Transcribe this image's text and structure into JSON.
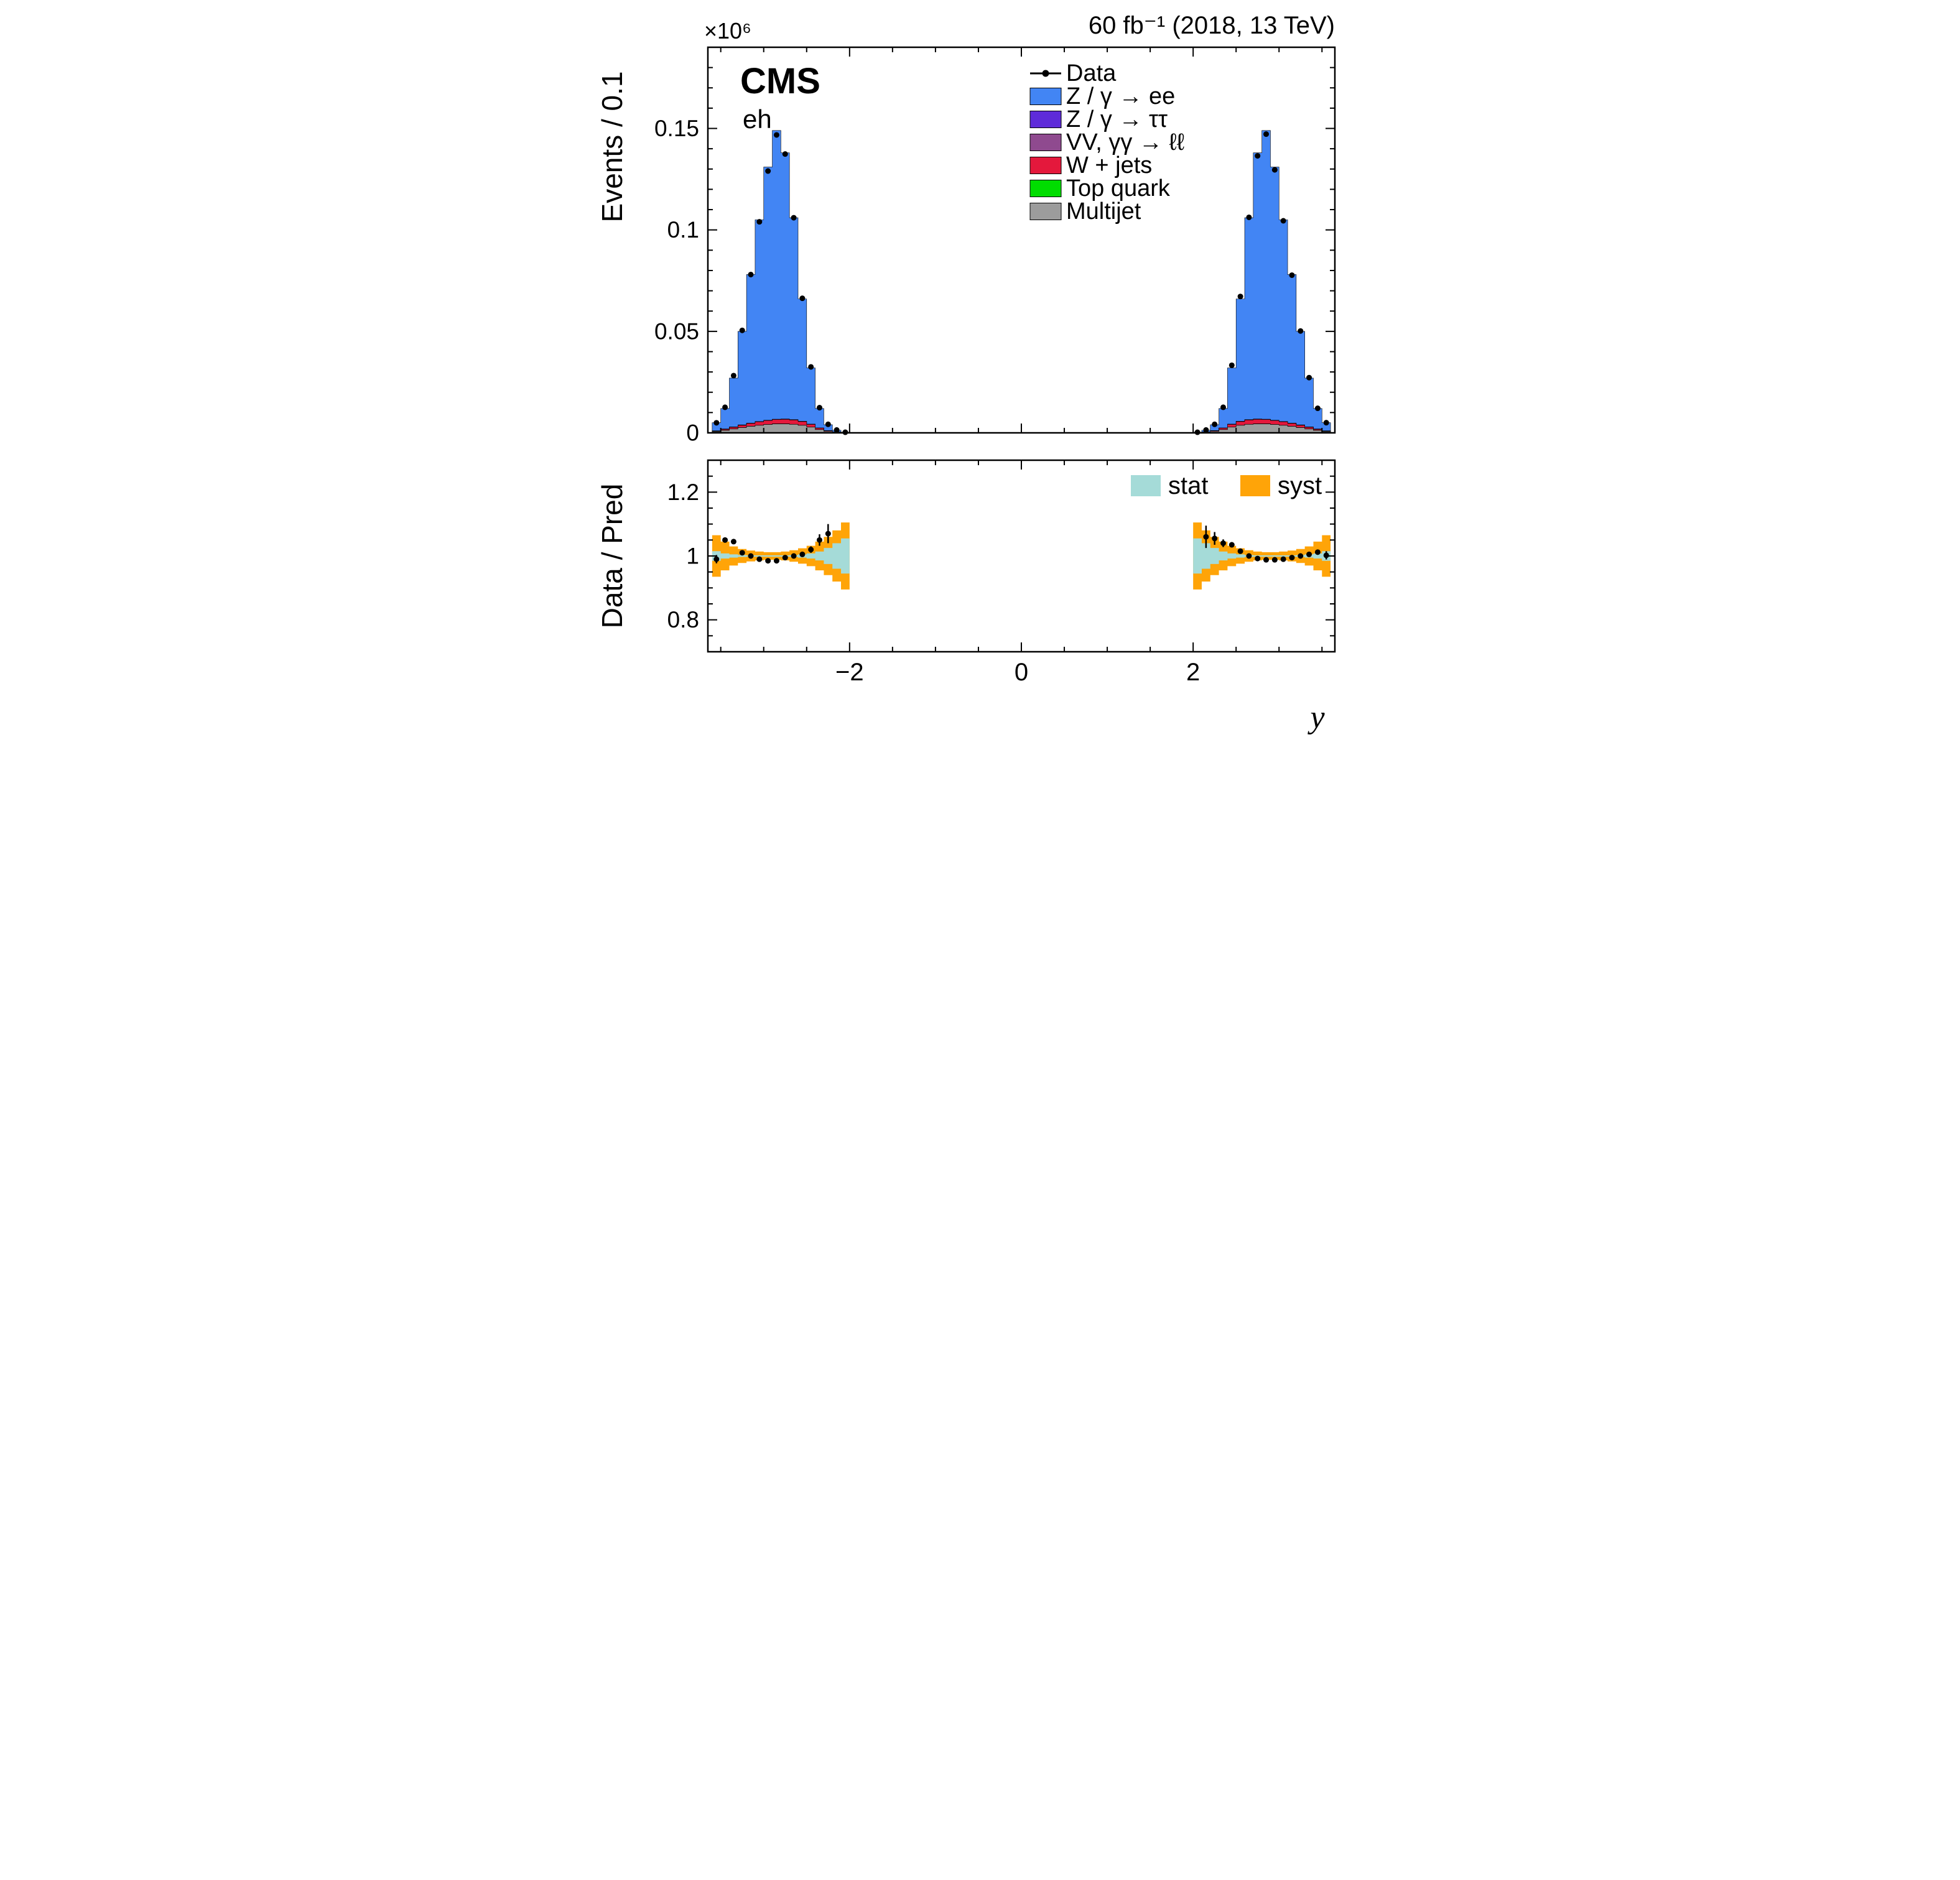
{
  "header": {
    "experiment": "CMS",
    "channel": "eh",
    "lumi_label": "60 fb⁻¹ (2018, 13 TeV)",
    "scale_exponent_label": "×10⁶"
  },
  "chart_data": {
    "type": "bar",
    "title": "",
    "x": {
      "title": "y",
      "min": -3.65,
      "max": 3.65,
      "major_ticks": [
        -2,
        0,
        2
      ],
      "tick_labels": [
        "−2",
        "0",
        "2"
      ],
      "minor_step": 0.5
    },
    "top_panel": {
      "y_title": "Events / 0.1",
      "y_min": 0,
      "y_max": 0.19,
      "major_ticks": [
        0,
        0.05,
        0.1,
        0.15
      ],
      "tick_labels": [
        "0",
        "0.05",
        "0.1",
        "0.15"
      ],
      "minor_step": 0.01
    },
    "ratio_panel": {
      "y_title": "Data / Pred",
      "y_min": 0.7,
      "y_max": 1.3,
      "major_ticks": [
        0.8,
        1.0,
        1.2
      ],
      "tick_labels": [
        "0.8",
        "1",
        "1.2"
      ],
      "minor_step": 0.05
    },
    "marker_color": "#000000",
    "legend": {
      "data_label": "Data",
      "ratio": {
        "stat_label": "stat",
        "stat_color": "#a5dbd8",
        "syst_label": "syst",
        "syst_color": "#ffa408"
      }
    },
    "series": [
      {
        "key": "zee",
        "label": "Z / γ → ee",
        "color": "#4285f4"
      },
      {
        "key": "tautau",
        "label": "Z / γ → ττ",
        "color": "#5e2bd9"
      },
      {
        "key": "vv",
        "label": "VV, γγ → ℓℓ",
        "color": "#8f4a8f"
      },
      {
        "key": "wjets",
        "label": "W + jets",
        "color": "#e4183c"
      },
      {
        "key": "top",
        "label": "Top quark",
        "color": "#00dd00"
      },
      {
        "key": "multijet",
        "label": "Multijet",
        "color": "#9c9c9c"
      }
    ],
    "stack_order": [
      "multijet",
      "top",
      "wjets",
      "vv",
      "tautau",
      "zee"
    ],
    "regions": [
      {
        "x_start": -3.6,
        "bin_width": 0.1,
        "n_bins": 16,
        "pred_total": [
          0.005,
          0.012,
          0.027,
          0.05,
          0.078,
          0.105,
          0.131,
          0.149,
          0.138,
          0.106,
          0.066,
          0.032,
          0.012,
          0.004,
          0.0013,
          0.0003
        ],
        "stacks": {
          "multijet": [
            0.0006,
            0.0012,
            0.0019,
            0.0026,
            0.0032,
            0.0037,
            0.0041,
            0.0044,
            0.0044,
            0.0042,
            0.0037,
            0.0028,
            0.0016,
            0.0007,
            0.0003,
            0.0001
          ],
          "top": [
            5e-05,
            5e-05,
            5e-05,
            5e-05,
            5e-05,
            5e-05,
            5e-05,
            5e-05,
            5e-05,
            5e-05,
            5e-05,
            5e-05,
            3e-05,
            2e-05,
            1e-05,
            1e-05
          ],
          "wjets": [
            0.0002,
            0.0005,
            0.0008,
            0.0011,
            0.0014,
            0.0017,
            0.0019,
            0.0021,
            0.0022,
            0.0021,
            0.0018,
            0.0013,
            0.0007,
            0.0003,
            0.0001,
            5e-05
          ],
          "vv": [
            8e-05,
            8e-05,
            8e-05,
            8e-05,
            8e-05,
            8e-05,
            8e-05,
            8e-05,
            8e-05,
            8e-05,
            8e-05,
            8e-05,
            5e-05,
            3e-05,
            1e-05,
            1e-05
          ],
          "tautau": [
            0.0001,
            0.0001,
            0.0001,
            0.0001,
            0.0001,
            0.0001,
            0.0001,
            0.0001,
            0.0001,
            0.0001,
            0.0001,
            0.0001,
            6e-05,
            3e-05,
            1e-05,
            1e-05
          ]
        },
        "data": [
          0.00495,
          0.0126,
          0.0282,
          0.0505,
          0.078,
          0.104,
          0.129,
          0.1468,
          0.1374,
          0.106,
          0.0663,
          0.0325,
          0.0124,
          0.0042,
          0.0014,
          0.0003
        ],
        "ratio": {
          "syst": [
            0.065,
            0.045,
            0.03,
            0.022,
            0.017,
            0.014,
            0.012,
            0.012,
            0.014,
            0.018,
            0.024,
            0.032,
            0.045,
            0.06,
            0.08,
            0.105
          ],
          "stat": [
            0.015,
            0.008,
            0.005,
            0.003,
            0.002,
            0.002,
            0.002,
            0.002,
            0.002,
            0.003,
            0.005,
            0.008,
            0.014,
            0.025,
            0.04,
            0.055
          ],
          "points_x": [
            -3.55,
            -3.45,
            -3.35,
            -3.25,
            -3.15,
            -3.05,
            -2.95,
            -2.85,
            -2.75,
            -2.65,
            -2.55,
            -2.45,
            -2.35,
            -2.25
          ],
          "points_y": [
            0.99,
            1.05,
            1.045,
            1.01,
            1.0,
            0.99,
            0.985,
            0.985,
            0.995,
            1.0,
            1.005,
            1.02,
            1.05,
            1.07
          ],
          "points_err": [
            0.013,
            0.008,
            0.005,
            0.004,
            0.003,
            0.003,
            0.003,
            0.003,
            0.003,
            0.004,
            0.006,
            0.01,
            0.018,
            0.03
          ]
        }
      },
      {
        "x_start": 2.0,
        "bin_width": 0.1,
        "n_bins": 16,
        "pred_total": [
          0.0003,
          0.0013,
          0.004,
          0.012,
          0.032,
          0.066,
          0.106,
          0.138,
          0.149,
          0.131,
          0.105,
          0.078,
          0.05,
          0.027,
          0.012,
          0.005
        ],
        "stacks": {
          "multijet": [
            0.0001,
            0.0003,
            0.0007,
            0.0016,
            0.0028,
            0.0037,
            0.0042,
            0.0044,
            0.0044,
            0.0041,
            0.0037,
            0.0032,
            0.0026,
            0.0019,
            0.0012,
            0.0006
          ],
          "top": [
            1e-05,
            1e-05,
            2e-05,
            3e-05,
            5e-05,
            5e-05,
            5e-05,
            5e-05,
            5e-05,
            5e-05,
            5e-05,
            5e-05,
            5e-05,
            5e-05,
            5e-05,
            5e-05
          ],
          "wjets": [
            5e-05,
            0.0001,
            0.0003,
            0.0007,
            0.0013,
            0.0018,
            0.0021,
            0.0022,
            0.0021,
            0.0019,
            0.0017,
            0.0014,
            0.0011,
            0.0008,
            0.0005,
            0.0002
          ],
          "vv": [
            1e-05,
            1e-05,
            3e-05,
            5e-05,
            8e-05,
            8e-05,
            8e-05,
            8e-05,
            8e-05,
            8e-05,
            8e-05,
            8e-05,
            8e-05,
            8e-05,
            8e-05,
            8e-05
          ],
          "tautau": [
            1e-05,
            1e-05,
            3e-05,
            6e-05,
            0.0001,
            0.0001,
            0.0001,
            0.0001,
            0.0001,
            0.0001,
            0.0001,
            0.0001,
            0.0001,
            0.0001,
            0.0001,
            0.0001
          ]
        },
        "data": [
          0.0003,
          0.0014,
          0.0042,
          0.0126,
          0.0333,
          0.0672,
          0.1062,
          0.1365,
          0.1472,
          0.1296,
          0.1045,
          0.0777,
          0.0502,
          0.0272,
          0.0121,
          0.005
        ],
        "ratio": {
          "syst": [
            0.105,
            0.08,
            0.06,
            0.045,
            0.032,
            0.024,
            0.018,
            0.014,
            0.012,
            0.012,
            0.014,
            0.017,
            0.022,
            0.03,
            0.045,
            0.065
          ],
          "stat": [
            0.055,
            0.04,
            0.025,
            0.014,
            0.008,
            0.005,
            0.003,
            0.002,
            0.002,
            0.002,
            0.002,
            0.002,
            0.003,
            0.005,
            0.008,
            0.015
          ],
          "points_x": [
            2.15,
            2.25,
            2.35,
            2.45,
            2.55,
            2.65,
            2.75,
            2.85,
            2.95,
            3.05,
            3.15,
            3.25,
            3.35,
            3.45,
            3.55
          ],
          "points_y": [
            1.06,
            1.055,
            1.04,
            1.035,
            1.015,
            1.0,
            0.992,
            0.988,
            0.988,
            0.99,
            0.995,
            1.0,
            1.005,
            1.012,
            1.002
          ],
          "points_err": [
            0.035,
            0.02,
            0.012,
            0.008,
            0.005,
            0.004,
            0.003,
            0.003,
            0.003,
            0.003,
            0.003,
            0.004,
            0.005,
            0.008,
            0.013
          ]
        }
      }
    ]
  }
}
